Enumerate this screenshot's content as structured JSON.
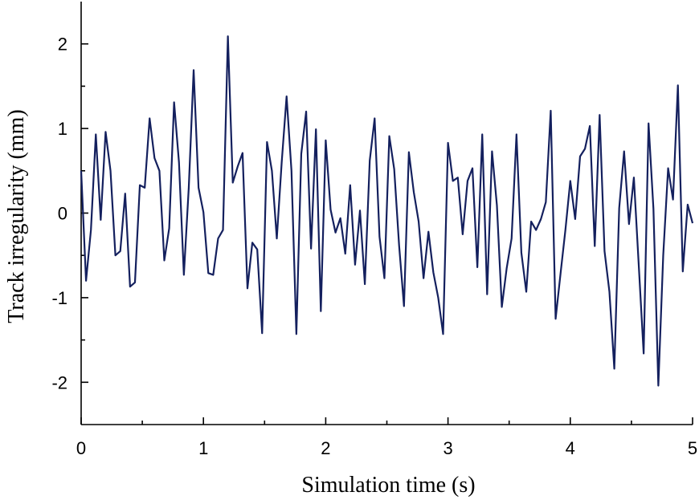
{
  "chart_data": {
    "type": "line",
    "title": "",
    "xlabel": "Simulation time (s)",
    "ylabel": "Track irregularity (mm)",
    "xlim": [
      0,
      5
    ],
    "ylim": [
      -2.5,
      2.5
    ],
    "x_ticks": [
      0,
      1,
      2,
      3,
      4,
      5
    ],
    "y_ticks": [
      -2,
      -1,
      0,
      1,
      2
    ],
    "x_minor_step": 0.5,
    "y_minor_step": 0.5,
    "grid": false,
    "line_color": "#14205e",
    "series": [
      {
        "x": [
          0.0,
          0.04,
          0.08,
          0.12,
          0.16,
          0.2,
          0.24,
          0.28,
          0.32,
          0.36,
          0.4,
          0.44,
          0.48,
          0.52,
          0.56,
          0.6,
          0.64,
          0.68,
          0.72,
          0.76,
          0.8,
          0.84,
          0.88,
          0.92,
          0.96,
          1.0,
          1.04,
          1.08,
          1.12,
          1.16,
          1.2,
          1.24,
          1.28,
          1.32,
          1.36,
          1.4,
          1.44,
          1.48,
          1.52,
          1.56,
          1.6,
          1.64,
          1.68,
          1.72,
          1.76,
          1.8,
          1.84,
          1.88,
          1.92,
          1.96,
          2.0,
          2.04,
          2.08,
          2.12,
          2.16,
          2.2,
          2.24,
          2.28,
          2.32,
          2.36,
          2.4,
          2.44,
          2.48,
          2.52,
          2.56,
          2.6,
          2.64,
          2.68,
          2.72,
          2.76,
          2.8,
          2.84,
          2.88,
          2.92,
          2.96,
          3.0,
          3.04,
          3.08,
          3.12,
          3.16,
          3.2,
          3.24,
          3.28,
          3.32,
          3.36,
          3.4,
          3.44,
          3.48,
          3.52,
          3.56,
          3.6,
          3.64,
          3.68,
          3.72,
          3.76,
          3.8,
          3.84,
          3.88,
          3.92,
          3.96,
          4.0,
          4.04,
          4.08,
          4.12,
          4.16,
          4.2,
          4.24,
          4.28,
          4.32,
          4.36,
          4.4,
          4.44,
          4.48,
          4.52,
          4.56,
          4.6,
          4.64,
          4.68,
          4.72,
          4.76,
          4.8,
          4.84,
          4.88,
          4.92,
          4.96,
          5.0
        ],
        "y": [
          0.5,
          -0.8,
          -0.2,
          0.93,
          -0.08,
          0.96,
          0.5,
          -0.5,
          -0.45,
          0.23,
          -0.87,
          -0.82,
          0.33,
          0.3,
          1.12,
          0.65,
          0.5,
          -0.56,
          -0.18,
          1.31,
          0.6,
          -0.73,
          0.3,
          1.69,
          0.3,
          0.01,
          -0.71,
          -0.73,
          -0.3,
          -0.2,
          2.09,
          0.36,
          0.55,
          0.71,
          -0.89,
          -0.35,
          -0.43,
          -1.42,
          0.84,
          0.5,
          -0.3,
          0.6,
          1.38,
          0.5,
          -1.43,
          0.7,
          1.2,
          -0.42,
          0.99,
          -1.16,
          0.86,
          0.04,
          -0.23,
          -0.06,
          -0.48,
          0.33,
          -0.61,
          0.03,
          -0.84,
          0.62,
          1.12,
          -0.28,
          -0.77,
          0.91,
          0.52,
          -0.38,
          -1.1,
          0.72,
          0.25,
          -0.1,
          -0.77,
          -0.22,
          -0.7,
          -1.0,
          -1.43,
          0.83,
          0.38,
          0.42,
          -0.25,
          0.38,
          0.53,
          -0.64,
          0.93,
          -0.96,
          0.73,
          0.09,
          -1.11,
          -0.65,
          -0.3,
          0.93,
          -0.47,
          -0.93,
          -0.1,
          -0.2,
          -0.07,
          0.13,
          1.21,
          -1.25,
          -0.72,
          -0.2,
          0.38,
          -0.07,
          0.67,
          0.76,
          1.03,
          -0.39,
          1.16,
          -0.45,
          -0.93,
          -1.84,
          0.06,
          0.73,
          -0.13,
          0.42,
          -0.62,
          -1.66,
          1.06,
          0.05,
          -2.04,
          -0.5,
          0.53,
          0.16,
          1.51,
          -0.69,
          0.1,
          -0.12
        ]
      }
    ]
  }
}
